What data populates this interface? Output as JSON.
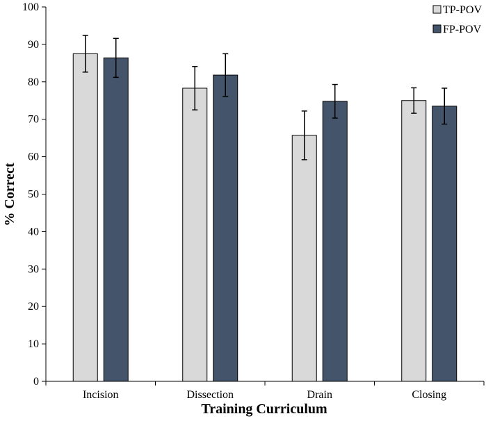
{
  "chart_data": {
    "type": "bar",
    "title": "",
    "xlabel": "Training Curriculum",
    "ylabel": "% Correct",
    "ylim": [
      0,
      100
    ],
    "yticks": [
      0,
      10,
      20,
      30,
      40,
      50,
      60,
      70,
      80,
      90,
      100
    ],
    "grid": false,
    "legend_position": "top-right",
    "categories": [
      "Incision",
      "Dissection",
      "Drain",
      "Closing"
    ],
    "series": [
      {
        "name": "TP-POV",
        "color": "#d9d9d9",
        "values": [
          87.5,
          78.3,
          65.7,
          75.0
        ],
        "errors": [
          4.9,
          5.8,
          6.5,
          3.4
        ]
      },
      {
        "name": "FP-POV",
        "color": "#44546a",
        "values": [
          86.4,
          81.8,
          74.8,
          73.5
        ],
        "errors": [
          5.2,
          5.7,
          4.5,
          4.8
        ]
      }
    ]
  }
}
